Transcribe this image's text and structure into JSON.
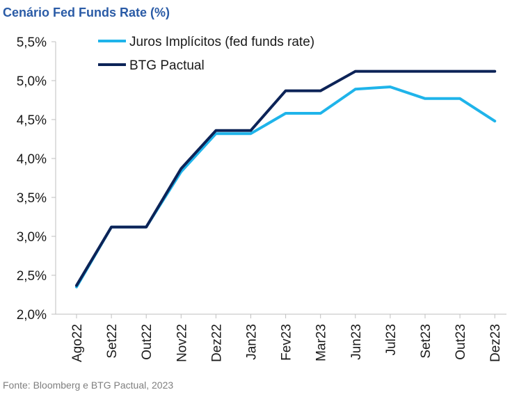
{
  "chart_data": {
    "type": "line",
    "title": "Cenário Fed Funds Rate (%)",
    "source": "Fonte: Bloomberg e BTG Pactual, 2023",
    "categories": [
      "Ago22",
      "Set22",
      "Out22",
      "Nov22",
      "Dez22",
      "Jan23",
      "Fev23",
      "Mar23",
      "Jun23",
      "Jul23",
      "Set23",
      "Out23",
      "Dez23"
    ],
    "y_ticks": [
      "5,5%",
      "5,0%",
      "4,5%",
      "4,0%",
      "3,5%",
      "3,0%",
      "2,5%",
      "2,0%"
    ],
    "ylim": [
      2.0,
      5.5
    ],
    "grid": false,
    "legend_position": "top",
    "series": [
      {
        "name": "Juros Implícitos (fed funds rate)",
        "color": "#1fb4ea",
        "values": [
          2.35,
          3.12,
          3.12,
          3.83,
          4.32,
          4.32,
          4.58,
          4.58,
          4.89,
          4.92,
          4.77,
          4.77,
          4.48
        ]
      },
      {
        "name": "BTG Pactual",
        "color": "#0c2357",
        "values": [
          2.37,
          3.12,
          3.12,
          3.87,
          4.36,
          4.36,
          4.87,
          4.87,
          5.12,
          5.12,
          5.12,
          5.12,
          5.12
        ]
      }
    ]
  }
}
